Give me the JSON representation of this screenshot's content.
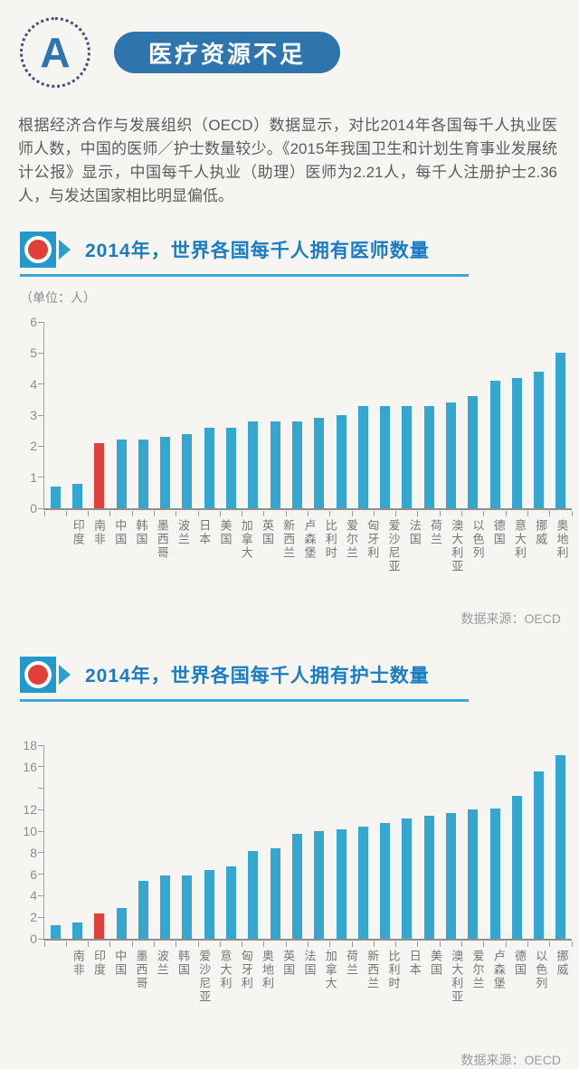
{
  "page": {
    "logo_letter": "A",
    "header_pill": "医疗资源不足",
    "intro": "根据经济合作与发展组织（OECD）数据显示，对比2014年各国每千人执业医师人数，中国的医师／护士数量较少。《2015年我国卫生和计划生育事业发展统计公报》显示，中国每千人执业（助理）医师为2.21人，每千人注册护士2.36人，与发达国家相比明显偏低。"
  },
  "colors": {
    "page_background": "#f7f5f1",
    "logo_blue": "#2e74ae",
    "pill_blue": "#2e75ad",
    "badge_cyan": "#2398cb",
    "title_blue": "#1a7cc1",
    "underline_cyan": "#3aa7d6",
    "bar_cyan": "#35a6cf",
    "highlight_red": "#e0413a",
    "axis_gray": "#9a9a9a"
  },
  "chart_data": [
    {
      "type": "bar",
      "title": "2014年，世界各国每千人拥有医师数量",
      "unit_label": "（单位：人）",
      "source": "数据来源：OECD",
      "ylim": [
        0,
        6
      ],
      "ytick_values": [
        0,
        1,
        2,
        3,
        4,
        5,
        6
      ],
      "ytick_labels": [
        "0",
        "1",
        "2",
        "3",
        "4",
        "5",
        "6"
      ],
      "grid": false,
      "legend": "none",
      "categories": [
        "印度",
        "南非",
        "中国",
        "韩国",
        "墨西哥",
        "波兰",
        "日本",
        "美国",
        "加拿大",
        "英国",
        "新西兰",
        "卢森堡",
        "比利时",
        "爱尔兰",
        "匈牙利",
        "爱沙尼亚",
        "法国",
        "荷兰",
        "澳大利亚",
        "以色列",
        "德国",
        "意大利",
        "挪威",
        "奥地利"
      ],
      "values": [
        0.7,
        0.8,
        2.1,
        2.2,
        2.2,
        2.3,
        2.4,
        2.6,
        2.6,
        2.8,
        2.8,
        2.8,
        2.9,
        3.0,
        3.3,
        3.3,
        3.3,
        3.3,
        3.4,
        3.6,
        4.1,
        4.2,
        4.4,
        5.0
      ],
      "highlight_index": 2,
      "highlight_category": "中国",
      "bar_color": "#35a6cf",
      "highlight_color": "#e0413a"
    },
    {
      "type": "bar",
      "title": "2014年，世界各国每千人拥有护士数量",
      "unit_label": "",
      "source": "数据来源：OECD",
      "ylim": [
        0,
        18
      ],
      "ytick_values": [
        0,
        2,
        4,
        6,
        8,
        10,
        12,
        14,
        16,
        18
      ],
      "ytick_labels": [
        "0",
        "2",
        "4",
        "6",
        "8",
        "10",
        "12",
        "",
        "16",
        "18"
      ],
      "grid": false,
      "legend": "none",
      "categories": [
        "南非",
        "印度",
        "中国",
        "墨西哥",
        "波兰",
        "韩国",
        "爱沙尼亚",
        "意大利",
        "匈牙利",
        "奥地利",
        "英国",
        "法国",
        "加拿大",
        "荷兰",
        "新西兰",
        "比利时",
        "日本",
        "美国",
        "澳大利亚",
        "爱尔兰",
        "卢森堡",
        "德国",
        "以色列",
        "挪威"
      ],
      "values": [
        1.3,
        1.5,
        2.36,
        2.9,
        5.4,
        5.9,
        5.9,
        6.4,
        6.7,
        8.2,
        8.4,
        9.8,
        10.0,
        10.2,
        10.4,
        10.8,
        11.2,
        11.4,
        11.7,
        12.0,
        12.1,
        13.3,
        15.6,
        17.1
      ],
      "highlight_index": 2,
      "highlight_category": "中国",
      "bar_color": "#35a6cf",
      "highlight_color": "#e0413a"
    }
  ]
}
